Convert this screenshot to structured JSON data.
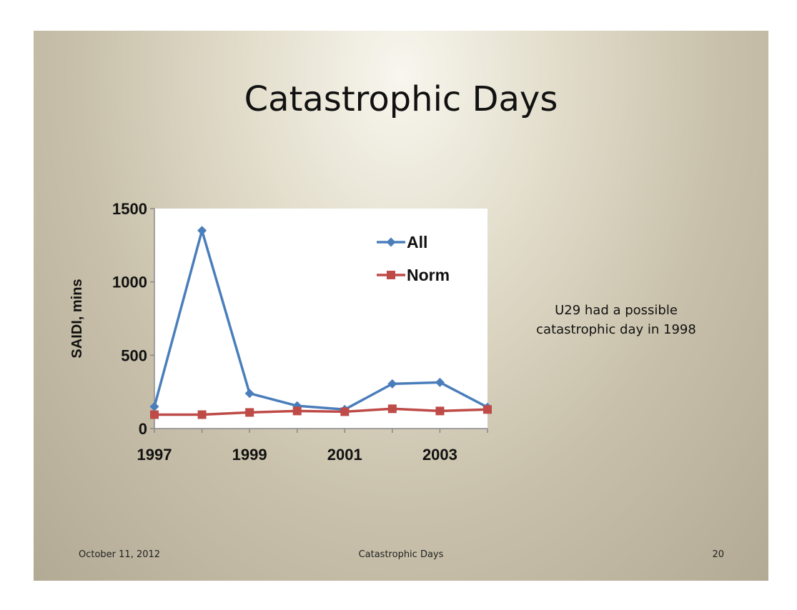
{
  "slide": {
    "title": "Catastrophic Days",
    "note_lines": [
      "U29 had a possible",
      "catastrophic day in 1998"
    ],
    "footer": {
      "date": "October 11, 2012",
      "title": "Catastrophic Days",
      "page": "20"
    }
  },
  "chart_data": {
    "type": "line",
    "title": "",
    "xlabel": "",
    "ylabel": "SAIDI, mins",
    "x": [
      1997,
      1998,
      1999,
      2000,
      2001,
      2002,
      2003,
      2004
    ],
    "xticks": [
      "1997",
      "1999",
      "2001",
      "2003"
    ],
    "yticks": [
      "0",
      "500",
      "1000",
      "1500"
    ],
    "xlim": [
      1997,
      2004
    ],
    "ylim": [
      0,
      1500
    ],
    "grid": false,
    "legend": "top-right",
    "series": [
      {
        "name": "All",
        "color": "#4a7ebb",
        "marker": "diamond",
        "values": [
          150,
          1350,
          240,
          155,
          130,
          305,
          315,
          145
        ]
      },
      {
        "name": "Norm",
        "color": "#be4b48",
        "marker": "square",
        "values": [
          95,
          95,
          110,
          120,
          115,
          135,
          120,
          130
        ]
      }
    ]
  }
}
